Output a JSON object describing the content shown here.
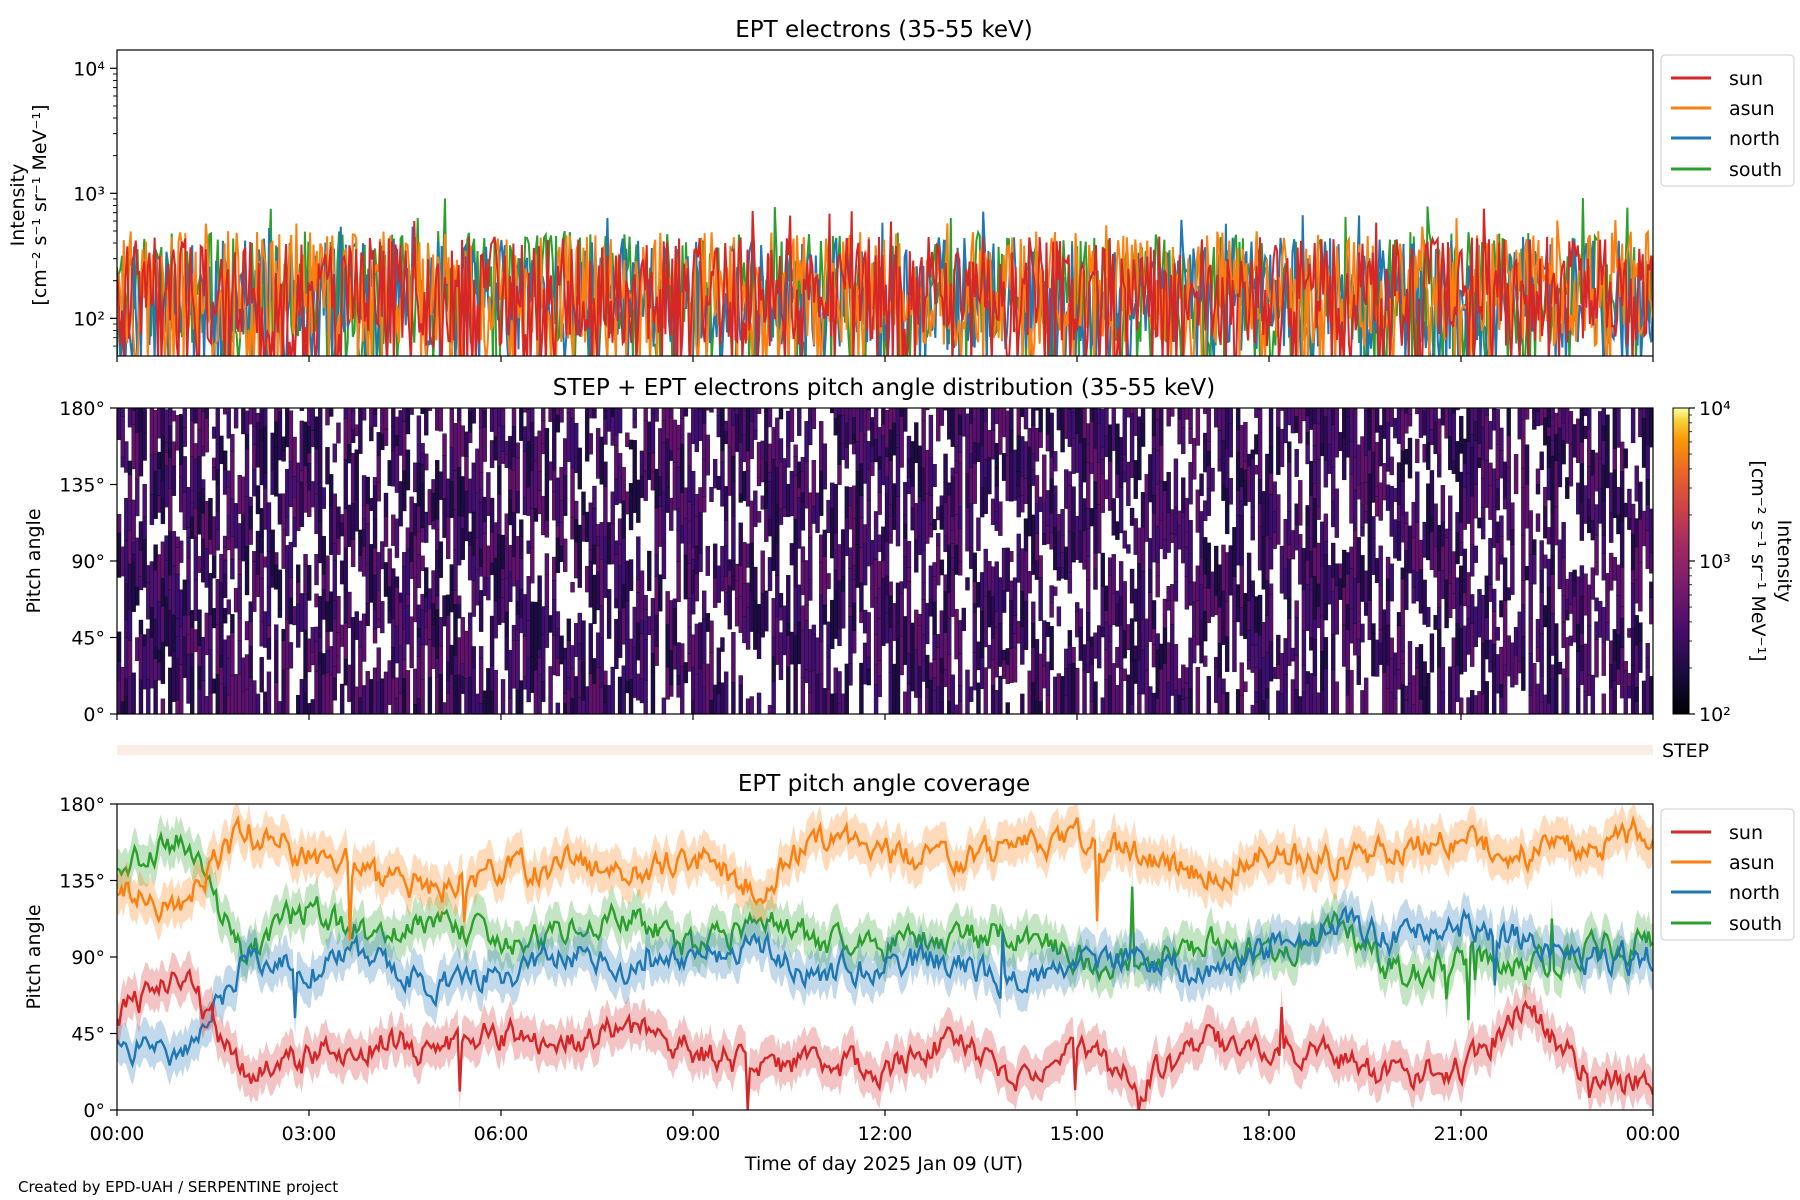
{
  "footer": {
    "credit": "Created by EPD-UAH / SERPENTINE project"
  },
  "colors": {
    "sun": "#d62728",
    "asun": "#ff7f0e",
    "north": "#1f77b4",
    "south": "#2ca02c",
    "step_band": "#fcece6"
  },
  "chart_data": [
    {
      "type": "line",
      "title": "EPT electrons (35-55 keV)",
      "ylabel_line1": "Intensity",
      "ylabel_line2": "[cm⁻² s⁻¹ sr⁻¹ MeV⁻¹]",
      "yscale": "log",
      "ylim": [
        50,
        14000
      ],
      "yticks": [
        100,
        1000,
        10000
      ],
      "ytick_labels": [
        "10²",
        "10³",
        "10⁴"
      ],
      "xlim": [
        "2025-01-09 00:00",
        "2025-01-10 00:00"
      ],
      "legend": {
        "placement": "right-outside-top",
        "entries": [
          "sun",
          "asun",
          "north",
          "south"
        ]
      },
      "series": [
        {
          "name": "sun",
          "typical_range": [
            60,
            450
          ],
          "peak_values": [
            700,
            650
          ]
        },
        {
          "name": "asun",
          "typical_range": [
            60,
            500
          ],
          "peak_values": [
            620,
            580
          ]
        },
        {
          "name": "north",
          "typical_range": [
            55,
            450
          ],
          "peak_values": [
            720,
            650
          ]
        },
        {
          "name": "south",
          "typical_range": [
            60,
            500
          ],
          "peak_values": [
            850,
            800,
            750
          ]
        }
      ]
    },
    {
      "type": "heatmap",
      "title": "STEP + EPT electrons pitch angle distribution (35-55 keV)",
      "ylabel": "Pitch angle",
      "ylim": [
        0,
        180
      ],
      "ytick_labels": [
        "0°",
        "45°",
        "90°",
        "135°",
        "180°"
      ],
      "xlim": [
        "2025-01-09 00:00",
        "2025-01-10 00:00"
      ],
      "colorbar": {
        "scale": "log",
        "range": [
          100,
          10000
        ],
        "tick_labels": [
          "10²",
          "10³",
          "10⁴"
        ],
        "label_line1": "Intensity",
        "label_line2": "[cm⁻² s⁻¹ sr⁻¹ MeV⁻¹]",
        "colormap": "inferno"
      },
      "typical_intensity": [
        100,
        400
      ],
      "step_label": "STEP"
    },
    {
      "type": "line",
      "title": "EPT pitch angle coverage",
      "ylabel": "Pitch angle",
      "ylim": [
        0,
        180
      ],
      "ytick_labels": [
        "0°",
        "45°",
        "90°",
        "135°",
        "180°"
      ],
      "xlabel": "Time of day 2025 Jan 09 (UT)",
      "xtick_labels": [
        "00:00",
        "03:00",
        "06:00",
        "09:00",
        "12:00",
        "15:00",
        "18:00",
        "21:00",
        "00:00"
      ],
      "legend": {
        "placement": "right-outside-top",
        "entries": [
          "sun",
          "asun",
          "north",
          "south"
        ]
      },
      "series": [
        {
          "name": "sun",
          "hours": [
            0,
            1,
            2,
            3,
            4,
            5,
            6,
            7,
            8,
            9,
            10,
            11,
            12,
            13,
            14,
            15,
            16,
            17,
            18,
            19,
            20,
            21,
            22,
            23,
            24
          ],
          "values": [
            55,
            80,
            20,
            30,
            40,
            35,
            45,
            40,
            50,
            35,
            25,
            30,
            25,
            40,
            20,
            35,
            15,
            40,
            40,
            30,
            20,
            25,
            60,
            20,
            15
          ]
        },
        {
          "name": "asun",
          "hours": [
            0,
            1,
            2,
            3,
            4,
            5,
            6,
            7,
            8,
            9,
            10,
            11,
            12,
            13,
            14,
            15,
            16,
            17,
            18,
            19,
            20,
            21,
            22,
            23,
            24
          ],
          "values": [
            130,
            120,
            165,
            150,
            140,
            130,
            140,
            145,
            135,
            150,
            130,
            160,
            150,
            145,
            155,
            160,
            150,
            140,
            150,
            145,
            155,
            160,
            150,
            155,
            165
          ]
        },
        {
          "name": "north",
          "hours": [
            0,
            1,
            2,
            3,
            4,
            5,
            6,
            7,
            8,
            9,
            10,
            11,
            12,
            13,
            14,
            15,
            16,
            17,
            18,
            19,
            20,
            21,
            22,
            23,
            24
          ],
          "values": [
            40,
            30,
            90,
            80,
            95,
            70,
            80,
            90,
            85,
            90,
            95,
            80,
            85,
            90,
            75,
            85,
            90,
            80,
            95,
            110,
            100,
            110,
            100,
            90,
            90
          ]
        },
        {
          "name": "south",
          "hours": [
            0,
            1,
            2,
            3,
            4,
            5,
            6,
            7,
            8,
            9,
            10,
            11,
            12,
            13,
            14,
            15,
            16,
            17,
            18,
            19,
            20,
            21,
            22,
            23,
            24
          ],
          "values": [
            140,
            160,
            90,
            120,
            100,
            110,
            100,
            105,
            115,
            95,
            110,
            100,
            95,
            100,
            105,
            90,
            85,
            100,
            90,
            110,
            80,
            90,
            85,
            95,
            100
          ]
        }
      ]
    }
  ]
}
